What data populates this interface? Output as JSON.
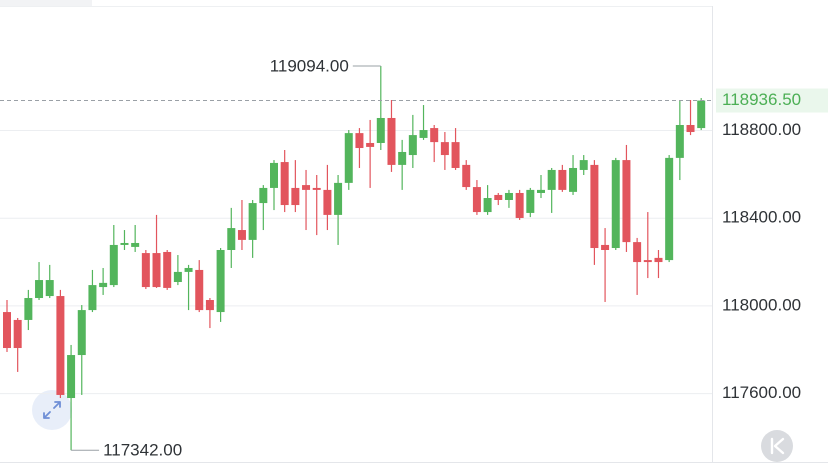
{
  "chart_data": {
    "type": "candlestick",
    "open": [
      117972,
      117936,
      117936,
      118036,
      118045,
      118045,
      117580,
      117776,
      117981,
      118086,
      118095,
      118278,
      118269,
      118241,
      118241,
      118246,
      118109,
      118155,
      118164,
      118027,
      117972,
      118255,
      118346,
      118301,
      118469,
      118538,
      118656,
      118538,
      118551,
      118538,
      118529,
      118415,
      118561,
      118788,
      118743,
      118743,
      118857,
      118643,
      118688,
      118766,
      118811,
      118747,
      118747,
      118643,
      118542,
      118428,
      118506,
      118483,
      118515,
      118424,
      118515,
      118529,
      118620,
      118520,
      118620,
      118643,
      118278,
      118264,
      118665,
      118291,
      118209,
      118219,
      118209,
      118675,
      118825,
      118811
    ],
    "high": [
      118027,
      117945,
      118073,
      118200,
      118187,
      118073,
      117822,
      118004,
      118164,
      118173,
      118369,
      118346,
      118369,
      118255,
      118415,
      118255,
      118232,
      118187,
      118209,
      118036,
      118264,
      118447,
      118483,
      118483,
      118551,
      118665,
      118711,
      118665,
      118620,
      118597,
      118643,
      118597,
      118802,
      118811,
      118848,
      119094,
      118939,
      118757,
      118871,
      118916,
      118825,
      118793,
      118811,
      118665,
      118574,
      118551,
      118515,
      118529,
      118529,
      118538,
      118597,
      118629,
      118643,
      118688,
      118688,
      118665,
      118355,
      118675,
      118734,
      118310,
      118428,
      118255,
      118688,
      118939,
      118939,
      118948
    ],
    "low": [
      117790,
      117699,
      117890,
      118027,
      118036,
      117580,
      117342,
      117594,
      117972,
      118050,
      118086,
      118255,
      118246,
      118077,
      118082,
      118073,
      118095,
      117981,
      117972,
      117899,
      117927,
      118173,
      118255,
      118219,
      118346,
      118437,
      118428,
      118428,
      118346,
      118323,
      118346,
      118278,
      118529,
      118629,
      118538,
      118711,
      118611,
      118529,
      118629,
      118757,
      118656,
      118620,
      118620,
      118529,
      118415,
      118415,
      118460,
      118447,
      118392,
      118405,
      118492,
      118424,
      118520,
      118506,
      118597,
      118187,
      118018,
      118255,
      118246,
      118050,
      118127,
      118127,
      118200,
      118574,
      118779,
      118802
    ],
    "close": [
      117808,
      117808,
      118036,
      118118,
      118118,
      117594,
      117776,
      117981,
      118095,
      118105,
      118278,
      118287,
      118287,
      118086,
      118086,
      118082,
      118155,
      118173,
      117981,
      117981,
      118255,
      118355,
      118301,
      118469,
      118538,
      118652,
      118460,
      118460,
      118529,
      118529,
      118415,
      118561,
      118788,
      118720,
      118725,
      118857,
      118643,
      118702,
      118779,
      118802,
      118747,
      118688,
      118629,
      118542,
      118428,
      118492,
      118483,
      118515,
      118401,
      118529,
      118529,
      118620,
      118529,
      118629,
      118665,
      118264,
      118255,
      118665,
      118291,
      118200,
      118200,
      118200,
      118675,
      118825,
      118793,
      118936.5
    ],
    "up_color": "#53b55c",
    "down_color": "#e2555d",
    "ylim": [
      117270,
      119395
    ],
    "yticks": [
      {
        "value": 118800,
        "label": "118800.00"
      },
      {
        "value": 118400,
        "label": "118400.00"
      },
      {
        "value": 118000,
        "label": "118000.00"
      },
      {
        "value": 117600,
        "label": "117600.00"
      }
    ],
    "grid": true,
    "last_price": {
      "value": 118936.5,
      "label": "118936.50"
    },
    "annotations": [
      {
        "value": 119094,
        "label": "119094.00"
      },
      {
        "value": 117342,
        "label": "117342.00"
      }
    ]
  }
}
